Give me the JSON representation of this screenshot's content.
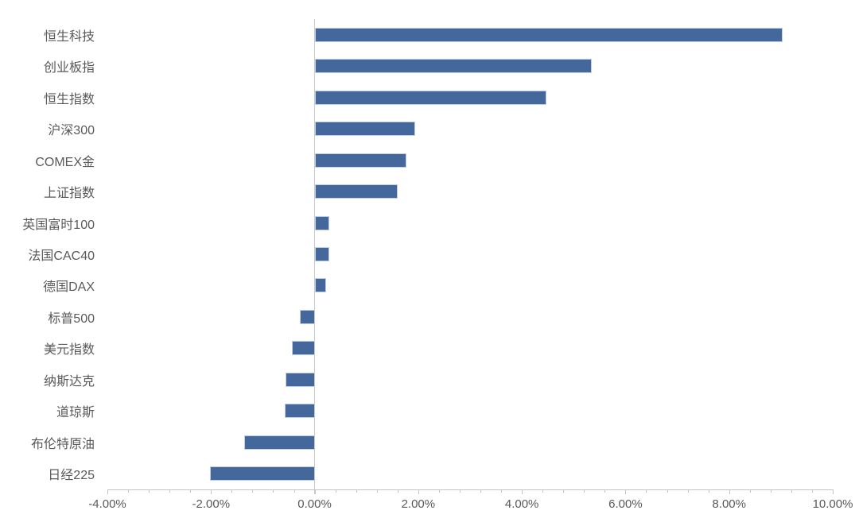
{
  "chart_data": {
    "type": "bar",
    "orientation": "horizontal",
    "title": "",
    "categories": [
      "恒生科技",
      "创业板指",
      "恒生指数",
      "沪深300",
      "COMEX金",
      "上证指数",
      "英国富时100",
      "法国CAC40",
      "德国DAX",
      "标普500",
      "美元指数",
      "纳斯达克",
      "道琼斯",
      "布伦特原油",
      "日经225"
    ],
    "values": [
      9.03,
      5.35,
      4.47,
      1.94,
      1.77,
      1.6,
      0.28,
      0.28,
      0.22,
      -0.29,
      -0.44,
      -0.56,
      -0.58,
      -1.36,
      -2.02
    ],
    "unit": "%",
    "xlabel": "",
    "ylabel": "",
    "xlim": [
      -4,
      10
    ],
    "x_major_tick": 2,
    "x_minor_tick": 0.4,
    "x_tick_labels": [
      "-4.00%",
      "-2.00%",
      "0.00%",
      "2.00%",
      "4.00%",
      "6.00%",
      "8.00%",
      "10.00%"
    ],
    "grid": "off",
    "legend": "none",
    "colors": {
      "bar": "#45689C",
      "axis": "#C3C3C3",
      "zero_line": "#C9C9C9",
      "text": "#595959"
    }
  }
}
